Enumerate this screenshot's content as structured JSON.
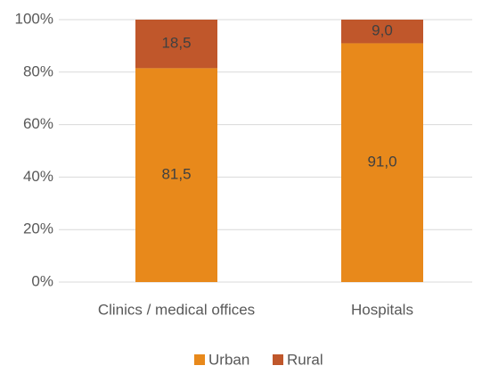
{
  "chart_data": {
    "type": "stacked_bar",
    "categories": [
      "Clinics / medical offices",
      "Hospitals"
    ],
    "series": [
      {
        "name": "Urban",
        "color": "#e8891b",
        "values": [
          81.5,
          91.0
        ],
        "value_labels": [
          "81,5",
          "91,0"
        ]
      },
      {
        "name": "Rural",
        "color": "#c0572b",
        "values": [
          18.5,
          9.0
        ],
        "value_labels": [
          "18,5",
          "9,0"
        ]
      }
    ],
    "ylim": [
      0,
      100
    ],
    "yticks": [
      {
        "value": 0,
        "label": "0%"
      },
      {
        "value": 20,
        "label": "20%"
      },
      {
        "value": 40,
        "label": "40%"
      },
      {
        "value": 60,
        "label": "60%"
      },
      {
        "value": 80,
        "label": "80%"
      },
      {
        "value": 100,
        "label": "100%"
      }
    ],
    "grid": true,
    "legend": "bottom"
  }
}
